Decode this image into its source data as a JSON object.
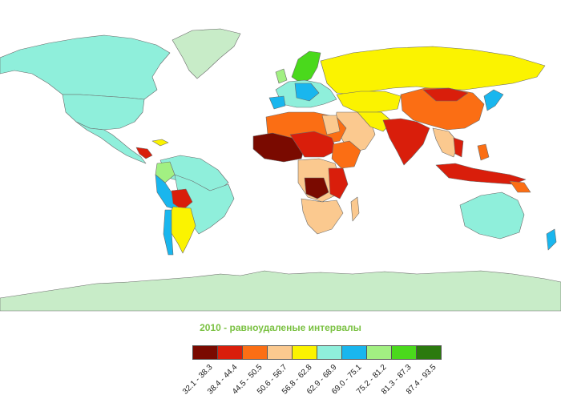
{
  "legend": {
    "title": "2010 - равноудаленые интервалы",
    "classes": [
      {
        "label": "32.1 - 38.3",
        "color": "#7a0a00"
      },
      {
        "label": "38.4 - 44.4",
        "color": "#d91e0b"
      },
      {
        "label": "44.5 - 50.5",
        "color": "#fb6e14"
      },
      {
        "label": "50.6 - 56.7",
        "color": "#fbc98f"
      },
      {
        "label": "56.8 - 62.8",
        "color": "#fbf300"
      },
      {
        "label": "62.9 - 68.9",
        "color": "#8fefdb"
      },
      {
        "label": "69.0 - 75.1",
        "color": "#19b6ee"
      },
      {
        "label": "75.2 - 81.2",
        "color": "#a2f082"
      },
      {
        "label": "81.3 - 87.3",
        "color": "#4ad91c"
      },
      {
        "label": "87.4 - 93.5",
        "color": "#2b7a0e"
      }
    ]
  },
  "colors": {
    "no_data": "#c8ecc8",
    "ocean": "#ffffff"
  }
}
